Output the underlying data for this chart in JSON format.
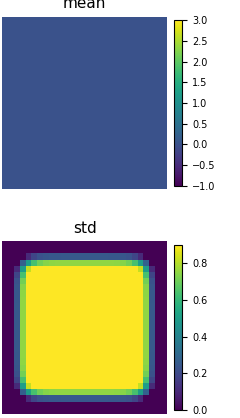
{
  "title_mean": "mean",
  "title_std": "std",
  "mean_value": 0.0,
  "mean_cmap": "viridis",
  "std_cmap": "viridis",
  "mean_vmin": -1.0,
  "mean_vmax": 3.0,
  "std_vmin": 0.0,
  "std_vmax": 0.9,
  "grid_size": 28,
  "title_fontsize": 11,
  "figsize": [
    2.4,
    4.18
  ],
  "dpi": 100
}
